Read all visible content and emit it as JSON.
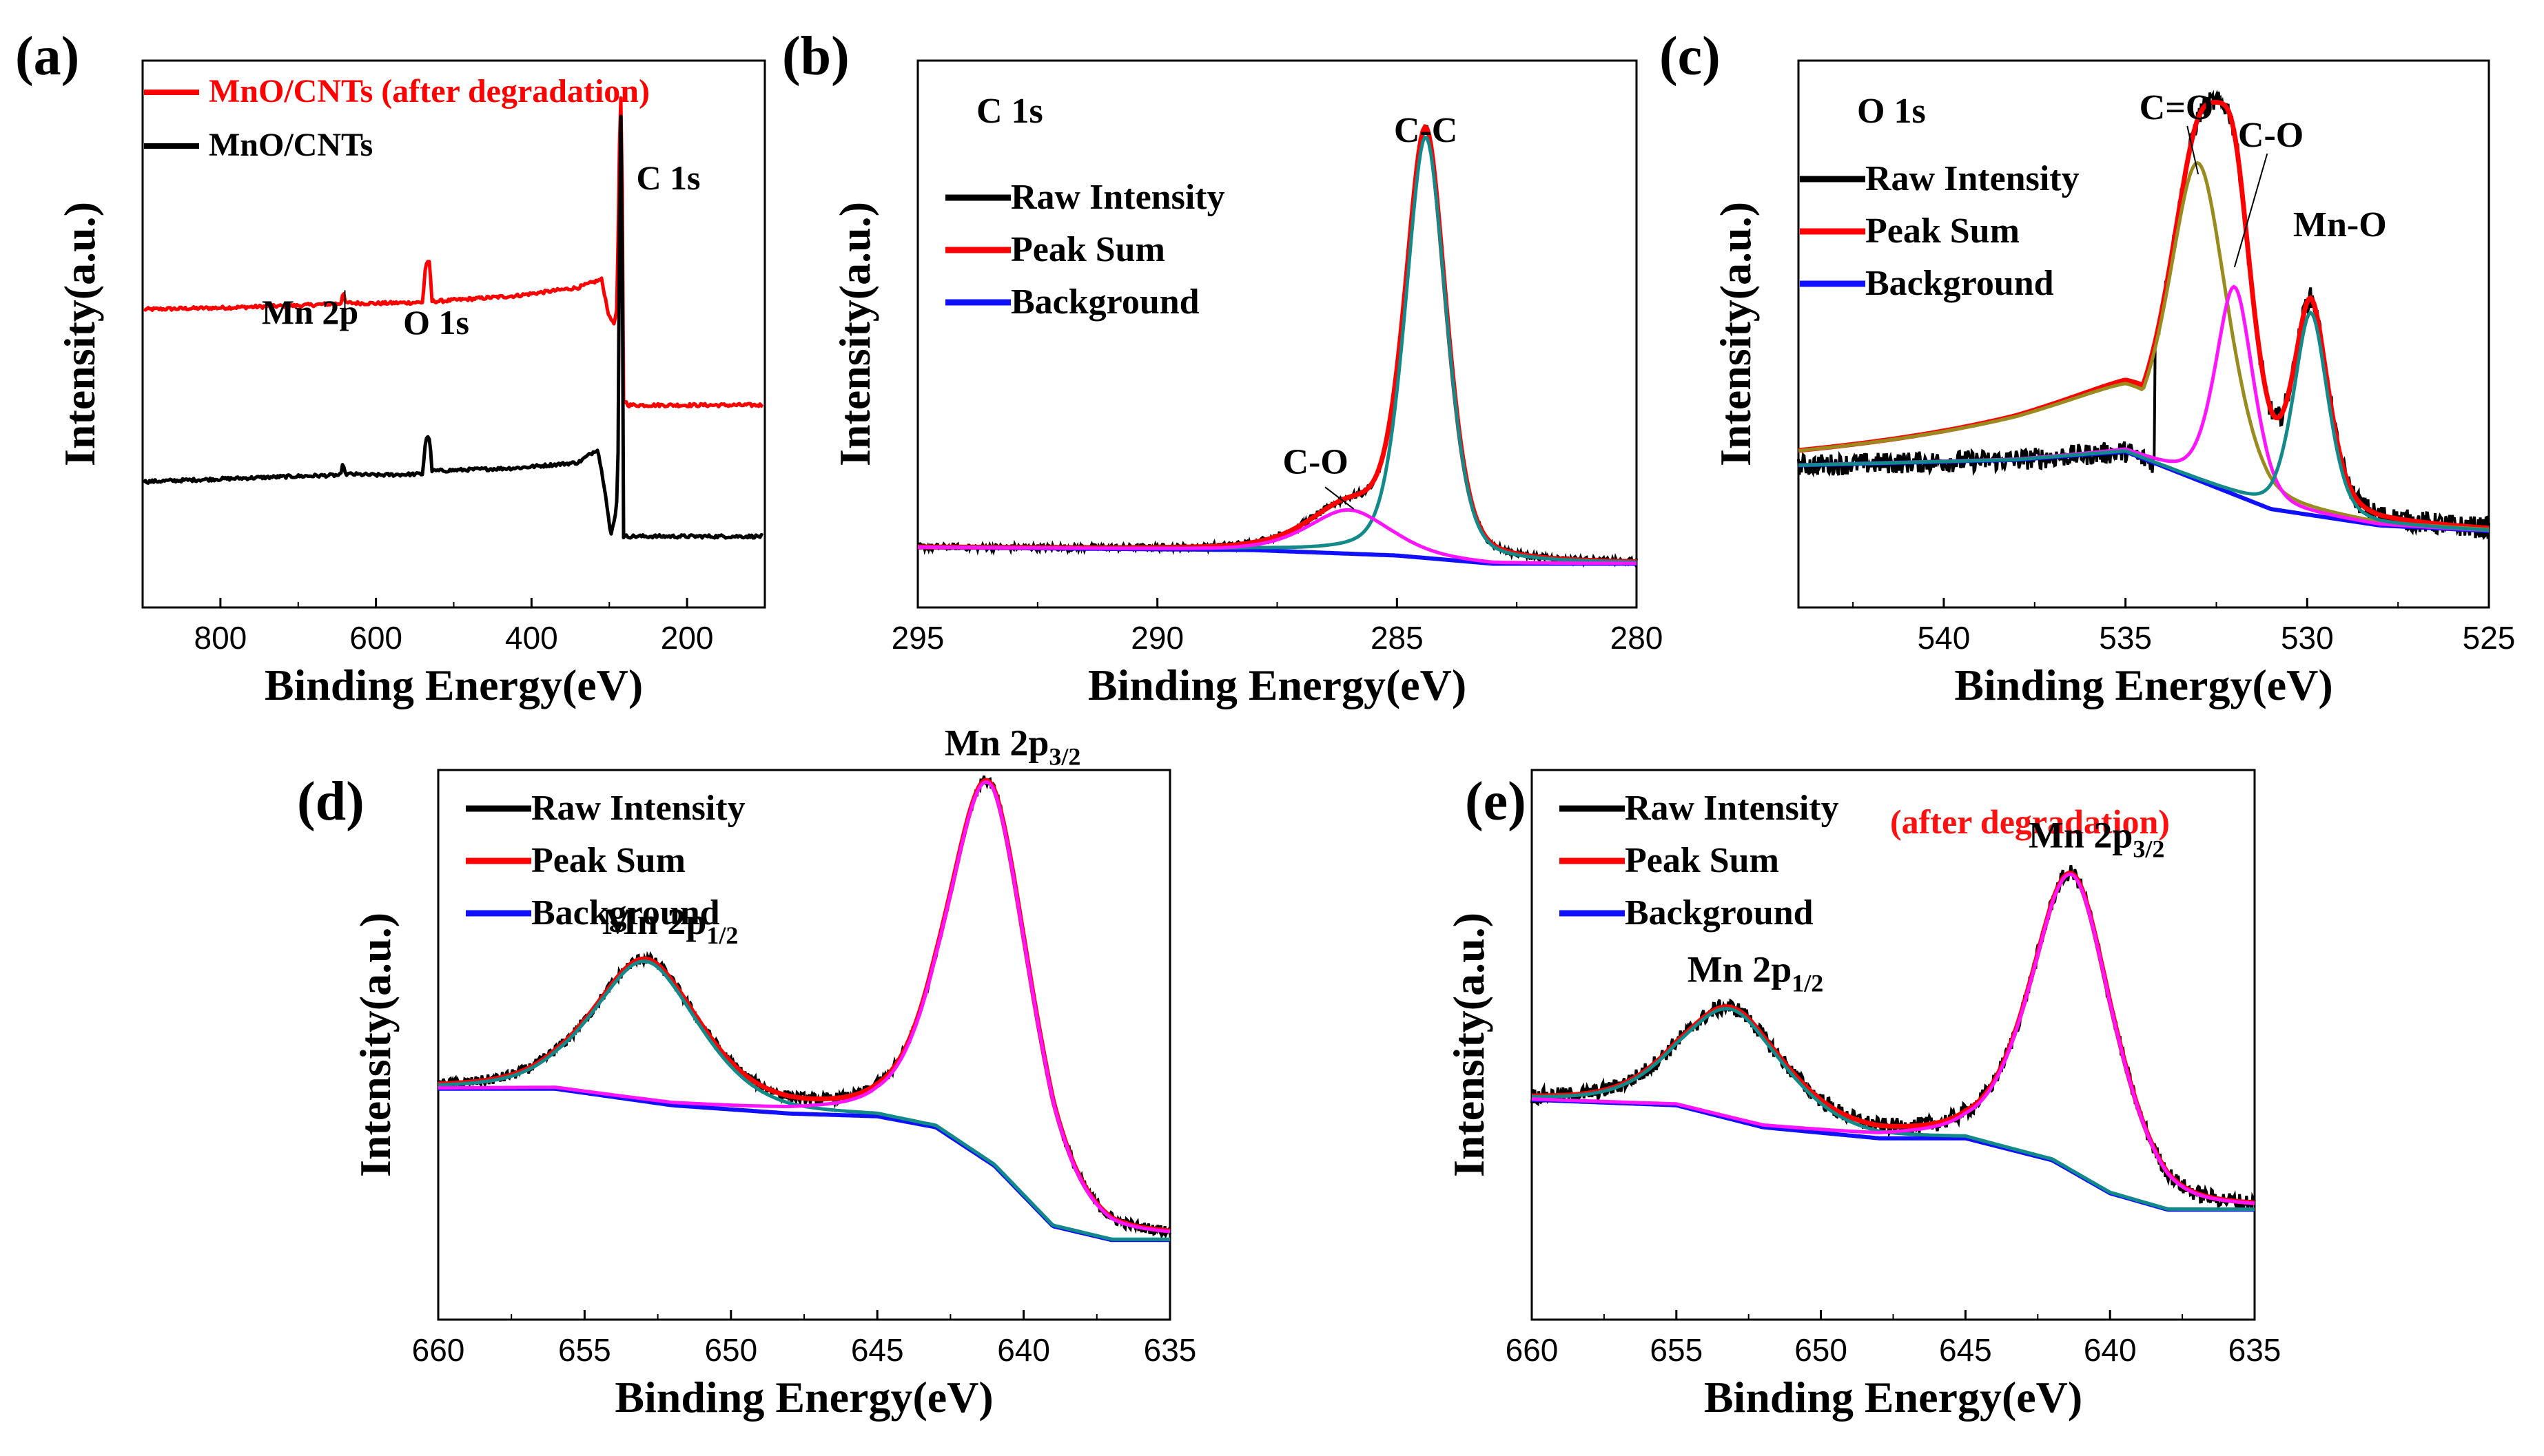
{
  "figure": {
    "panel_count": 5,
    "colors": {
      "raw": "#000000",
      "peak_sum": "#ff0000",
      "background": "#1010ff",
      "component_teal": "#138a8a",
      "component_magenta": "#ff14ff",
      "component_olive": "#9a8b1e",
      "after_text": "#ff1010"
    }
  },
  "chart_data": [
    {
      "panel": "(a)",
      "type": "line",
      "title": "",
      "xlabel": "Binding Energy(eV)",
      "ylabel": "Intensity(a.u.)",
      "xlim": [
        900,
        100
      ],
      "ylim": [
        0,
        1
      ],
      "xticks": [
        800,
        600,
        400,
        200
      ],
      "legend": [
        {
          "name": "MnO/CNTs (after degradation)",
          "color": "#ff0000"
        },
        {
          "name": "MnO/CNTs",
          "color": "#000000"
        }
      ],
      "annotations": [
        "Mn 2p",
        "O 1s",
        "C 1s"
      ],
      "series": [
        {
          "name": "MnO/CNTs (after degradation)",
          "color": "#ff0000",
          "x": [
            900,
            800,
            700,
            645,
            642,
            640,
            600,
            540,
            536,
            531,
            528,
            520,
            420,
            340,
            310,
            300,
            293,
            290,
            286,
            284,
            282,
            275,
            200,
            100
          ],
          "y": [
            0.545,
            0.548,
            0.552,
            0.556,
            0.582,
            0.557,
            0.556,
            0.558,
            0.63,
            0.63,
            0.56,
            0.56,
            0.57,
            0.585,
            0.6,
            0.53,
            0.52,
            0.55,
            0.93,
            0.93,
            0.38,
            0.37,
            0.37,
            0.37
          ]
        },
        {
          "name": "MnO/CNTs",
          "color": "#000000",
          "x": [
            900,
            800,
            700,
            645,
            642,
            640,
            600,
            540,
            536,
            531,
            528,
            520,
            420,
            340,
            315,
            305,
            298,
            292,
            289,
            286,
            284,
            282,
            275,
            200,
            100
          ],
          "y": [
            0.23,
            0.235,
            0.24,
            0.242,
            0.268,
            0.244,
            0.242,
            0.244,
            0.31,
            0.31,
            0.25,
            0.25,
            0.255,
            0.265,
            0.29,
            0.21,
            0.13,
            0.17,
            0.22,
            0.9,
            0.9,
            0.13,
            0.13,
            0.13,
            0.13
          ]
        }
      ]
    },
    {
      "panel": "(b)",
      "type": "line",
      "title": "C 1s",
      "xlabel": "Binding Energy(eV)",
      "ylabel": "Intensity(a.u.)",
      "xlim": [
        295,
        280
      ],
      "ylim": [
        0,
        1
      ],
      "xticks": [
        295,
        290,
        285,
        280
      ],
      "legend": [
        {
          "name": "Raw Intensity",
          "color": "#000000"
        },
        {
          "name": "Peak Sum",
          "color": "#ff0000"
        },
        {
          "name": "Background",
          "color": "#1010ff"
        }
      ],
      "annotations": [
        "C-C",
        "C-O"
      ],
      "peaks": [
        {
          "label": "C-C",
          "center_eV": 284.4,
          "height": 0.77,
          "width_eV": 0.45,
          "color": "#138a8a"
        },
        {
          "label": "C-O",
          "center_eV": 286.0,
          "height": 0.08,
          "width_eV": 0.9,
          "color": "#ff14ff"
        }
      ],
      "background": {
        "x": [
          295,
          288,
          285,
          283,
          280
        ],
        "y": [
          0.11,
          0.105,
          0.095,
          0.08,
          0.08
        ]
      },
      "raw_noise": 0.006
    },
    {
      "panel": "(c)",
      "type": "line",
      "title": "O 1s",
      "xlabel": "Binding Energy(eV)",
      "ylabel": "Intensity(a.u.)",
      "xlim": [
        544,
        525
      ],
      "ylim": [
        0,
        1
      ],
      "xticks": [
        540,
        535,
        530,
        525
      ],
      "legend": [
        {
          "name": "Raw Intensity",
          "color": "#000000"
        },
        {
          "name": "Peak Sum",
          "color": "#ff0000"
        },
        {
          "name": "Background",
          "color": "#1010ff"
        }
      ],
      "annotations": [
        "C=O",
        "C-O",
        "Mn-O"
      ],
      "peaks": [
        {
          "label": "C=O",
          "center_eV": 533.0,
          "height": 0.58,
          "width_eV": 0.85,
          "color": "#9a8b1e",
          "tail": 0.34
        },
        {
          "label": "C-O",
          "center_eV": 532.0,
          "height": 0.38,
          "width_eV": 0.55,
          "color": "#ff14ff"
        },
        {
          "label": "Mn-O",
          "center_eV": 529.9,
          "height": 0.37,
          "width_eV": 0.5,
          "color": "#138a8a"
        }
      ],
      "background": {
        "x": [
          544,
          538,
          535,
          531,
          528,
          525
        ],
        "y": [
          0.26,
          0.27,
          0.285,
          0.18,
          0.15,
          0.14
        ]
      },
      "raw_noise": 0.02
    },
    {
      "panel": "(d)",
      "type": "line",
      "title": "",
      "xlabel": "Binding Energy(eV)",
      "ylabel": "Intensity(a.u.)",
      "xlim": [
        660,
        635
      ],
      "ylim": [
        0,
        1
      ],
      "xticks": [
        660,
        655,
        650,
        645,
        640,
        635
      ],
      "legend": [
        {
          "name": "Raw Intensity",
          "color": "#000000"
        },
        {
          "name": "Peak Sum",
          "color": "#ff0000"
        },
        {
          "name": "Background",
          "color": "#1010ff"
        }
      ],
      "annotations": [
        "Mn 2p1/2",
        "Mn 2p3/2"
      ],
      "peaks": [
        {
          "label": "Mn 2p1/2",
          "center_eV": 652.9,
          "height": 0.255,
          "width_eV": 1.9,
          "color": "#138a8a"
        },
        {
          "label": "Mn 2p3/2",
          "center_eV": 641.2,
          "height": 0.69,
          "width_eV": 1.5,
          "color": "#ff14ff"
        }
      ],
      "background": {
        "x": [
          660,
          656,
          652,
          648,
          645,
          643,
          641,
          639,
          637,
          635
        ],
        "y": [
          0.42,
          0.42,
          0.39,
          0.375,
          0.37,
          0.35,
          0.28,
          0.17,
          0.145,
          0.145
        ]
      },
      "raw_noise": 0.01
    },
    {
      "panel": "(e)",
      "type": "line",
      "title": "(after degradation)",
      "xlabel": "Binding Energy(eV)",
      "ylabel": "Intensity(a.u.)",
      "xlim": [
        660,
        635
      ],
      "ylim": [
        0,
        1
      ],
      "xticks": [
        660,
        655,
        650,
        645,
        640,
        635
      ],
      "legend": [
        {
          "name": "Raw Intensity",
          "color": "#000000"
        },
        {
          "name": "Peak Sum",
          "color": "#ff0000"
        },
        {
          "name": "Background",
          "color": "#1010ff"
        }
      ],
      "annotations": [
        "Mn 2p1/2",
        "Mn 2p3/2"
      ],
      "peaks": [
        {
          "label": "Mn 2p1/2",
          "center_eV": 653.1,
          "height": 0.2,
          "width_eV": 1.9,
          "color": "#138a8a"
        },
        {
          "label": "Mn 2p3/2",
          "center_eV": 641.3,
          "height": 0.54,
          "width_eV": 1.5,
          "color": "#ff14ff"
        }
      ],
      "background": {
        "x": [
          660,
          655,
          652,
          648,
          645,
          642,
          640,
          638,
          635
        ],
        "y": [
          0.4,
          0.39,
          0.35,
          0.33,
          0.33,
          0.29,
          0.23,
          0.2,
          0.2
        ]
      },
      "raw_noise": 0.015
    }
  ]
}
